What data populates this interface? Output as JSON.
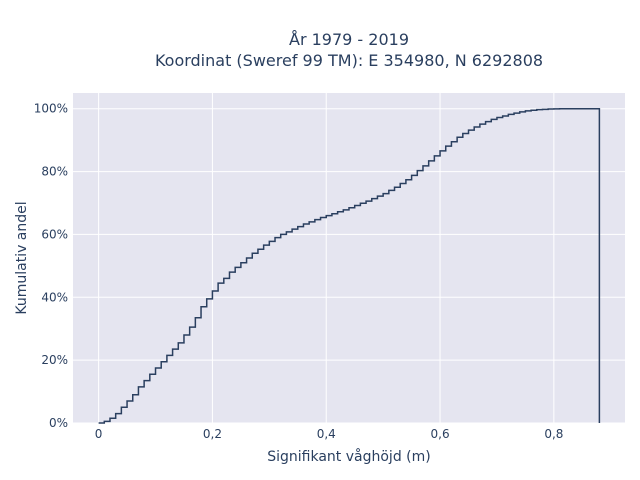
{
  "chart_data": {
    "type": "line",
    "line_shape": "step",
    "title": [
      "År 1979 - 2019",
      "Koordinat (Sweref 99 TM): E 354980, N 6292808"
    ],
    "xlabel": "Signifikant våghöjd (m)",
    "ylabel": "Kumulativ andel",
    "xlim": [
      -0.045,
      0.925
    ],
    "ylim": [
      0,
      1.05
    ],
    "x_ticks": [
      {
        "value": 0,
        "label": "0"
      },
      {
        "value": 0.2,
        "label": "0,2"
      },
      {
        "value": 0.4,
        "label": "0,4"
      },
      {
        "value": 0.6,
        "label": "0,6"
      },
      {
        "value": 0.8,
        "label": "0,8"
      }
    ],
    "y_ticks": [
      {
        "value": 0,
        "label": "0%"
      },
      {
        "value": 0.2,
        "label": "20%"
      },
      {
        "value": 0.4,
        "label": "40%"
      },
      {
        "value": 0.6,
        "label": "60%"
      },
      {
        "value": 0.8,
        "label": "80%"
      },
      {
        "value": 1.0,
        "label": "100%"
      }
    ],
    "grid": true,
    "colors": {
      "background": "#e5e5f0",
      "grid": "#ffffff",
      "line": "#2a3f5f",
      "text": "#2a3f5f"
    },
    "series": [
      {
        "x": [
          0,
          0.01,
          0.02,
          0.03,
          0.04,
          0.05,
          0.06,
          0.07,
          0.08,
          0.09,
          0.1,
          0.11,
          0.12,
          0.13,
          0.14,
          0.15,
          0.16,
          0.17,
          0.18,
          0.19,
          0.2,
          0.21,
          0.22,
          0.23,
          0.24,
          0.25,
          0.26,
          0.27,
          0.28,
          0.29,
          0.3,
          0.31,
          0.32,
          0.33,
          0.34,
          0.35,
          0.36,
          0.37,
          0.38,
          0.39,
          0.4,
          0.41,
          0.42,
          0.43,
          0.44,
          0.45,
          0.46,
          0.47,
          0.48,
          0.49,
          0.5,
          0.51,
          0.52,
          0.53,
          0.54,
          0.55,
          0.56,
          0.57,
          0.58,
          0.59,
          0.6,
          0.61,
          0.62,
          0.63,
          0.64,
          0.65,
          0.66,
          0.67,
          0.68,
          0.69,
          0.7,
          0.71,
          0.72,
          0.73,
          0.74,
          0.75,
          0.76,
          0.77,
          0.78,
          0.79,
          0.8,
          0.81,
          0.82,
          0.83,
          0.84,
          0.85,
          0.86,
          0.87,
          0.88
        ],
        "y": [
          0,
          0.005,
          0.015,
          0.03,
          0.05,
          0.07,
          0.09,
          0.115,
          0.135,
          0.155,
          0.175,
          0.195,
          0.215,
          0.235,
          0.255,
          0.28,
          0.305,
          0.335,
          0.37,
          0.395,
          0.42,
          0.445,
          0.46,
          0.48,
          0.495,
          0.51,
          0.525,
          0.54,
          0.553,
          0.566,
          0.578,
          0.59,
          0.6,
          0.608,
          0.617,
          0.625,
          0.633,
          0.64,
          0.647,
          0.654,
          0.66,
          0.666,
          0.672,
          0.678,
          0.685,
          0.692,
          0.699,
          0.706,
          0.714,
          0.722,
          0.73,
          0.74,
          0.75,
          0.762,
          0.774,
          0.788,
          0.803,
          0.818,
          0.834,
          0.85,
          0.866,
          0.881,
          0.895,
          0.909,
          0.921,
          0.932,
          0.942,
          0.951,
          0.959,
          0.966,
          0.972,
          0.977,
          0.982,
          0.986,
          0.99,
          0.993,
          0.995,
          0.997,
          0.998,
          0.999,
          0.9995,
          1.0,
          1.0,
          1.0,
          1.0,
          1.0,
          1.0,
          1.0,
          1.0
        ]
      }
    ]
  }
}
